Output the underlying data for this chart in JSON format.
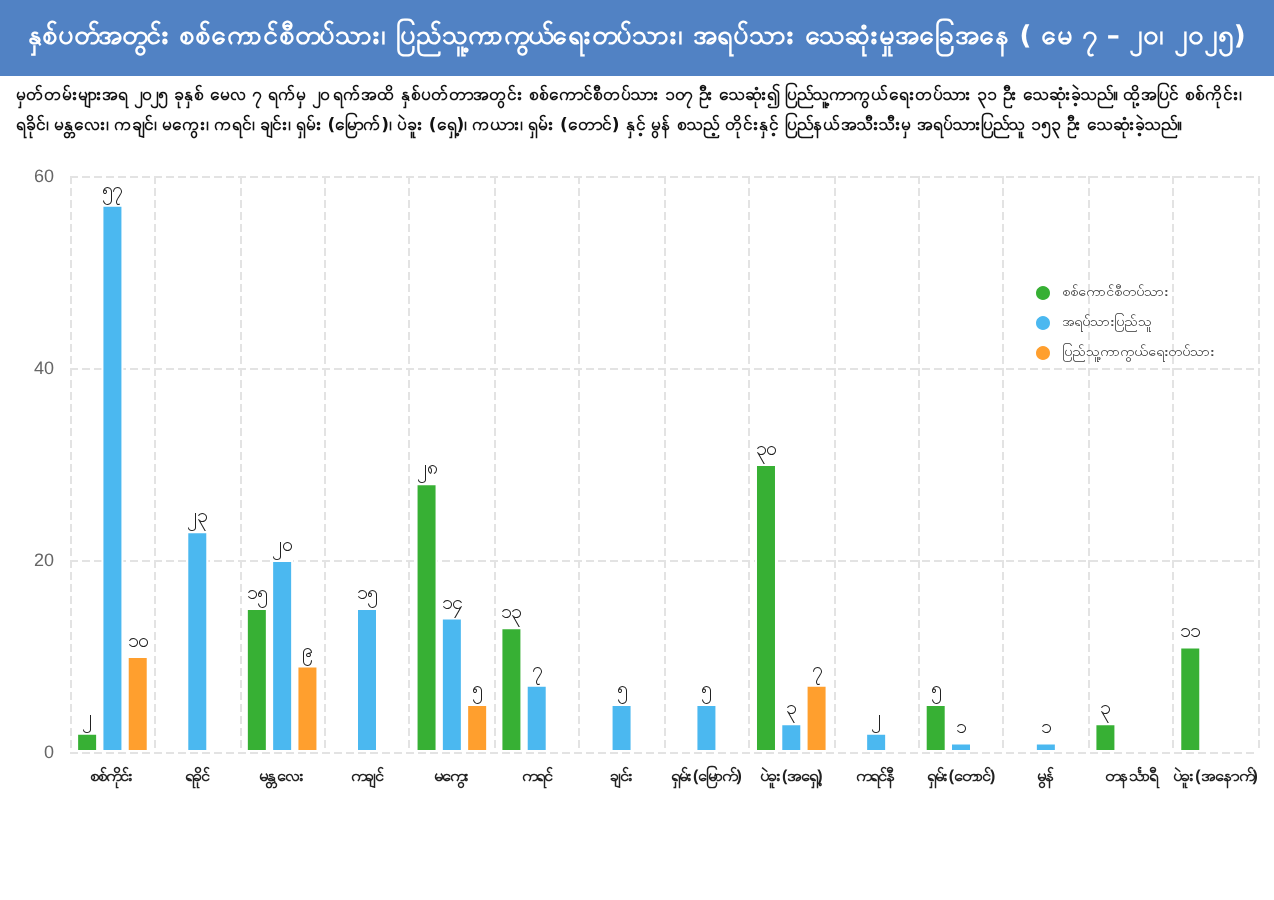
{
  "chart_data": {
    "type": "bar",
    "title": "နှစ်ပတ်အတွင်း စစ်ကောင်စီတပ်သား၊ ပြည်သူ့ကာကွယ်ရေးတပ်သား၊ အရပ်သား သေဆုံးမှုအခြေအနေ ( မေ ၇ – ၂၀၊ ၂၀၂၅)",
    "subtitle": "မှတ်တမ်းများအရ ၂၀၂၅ ခုနှစ် မေလ ၇ ရက်မှ ၂၀ ရက်အထိ နှစ်ပတ်တာအတွင်း စစ်ကောင်စီတပ်သား ၁၀၇ ဦး သေဆုံး၍ ပြည်သူ့ကာကွယ်ရေးတပ်သား ၃၁ ဦး သေဆုံးခဲ့သည်။ ထို့အပြင် စစ်ကိုင်း၊ ရခိုင်၊ မန္တလေး၊ ကချင်၊ မကွေး၊ ကရင်၊ ချင်း၊ ရှမ်း (မြောက်)၊ ပဲခူး (ရှေ့)၊ ကယား၊ ရှမ်း (တောင်) နှင့် မွန် စသည့် တိုင်းနှင့် ပြည်နယ်အသီးသီးမှ အရပ်သားပြည်သူ ၁၅၃ ဦး သေဆုံးခဲ့သည်။",
    "categories": [
      "စစ်ကိုင်း",
      "ရခိုင်",
      "မန္တလေး",
      "ကချင်",
      "မကွေး",
      "ကရင်",
      "ချင်း",
      "ရှမ်း(မြောက်)",
      "ပဲခူး(အရှေ့)",
      "ကရင်နီ",
      "ရှမ်း(တောင်)",
      "မွန်",
      "တနင်္သာရီ",
      "ပဲခူး(အနောက်)"
    ],
    "series": [
      {
        "name": "စစ်ကောင်စီတပ်သား",
        "color": "#37b034",
        "values": [
          2,
          null,
          15,
          null,
          28,
          13,
          null,
          null,
          30,
          null,
          5,
          null,
          3,
          11
        ],
        "value_labels": [
          "၂",
          null,
          "၁၅",
          null,
          "၂၈",
          "၁၃",
          null,
          null,
          "၃၀",
          null,
          "၅",
          null,
          "၃",
          "၁၁"
        ]
      },
      {
        "name": "အရပ်သားပြည်သူ",
        "color": "#4bb8f0",
        "values": [
          57,
          23,
          20,
          15,
          14,
          7,
          5,
          5,
          3,
          2,
          1,
          1,
          null,
          null
        ],
        "value_labels": [
          "၅၇",
          "၂၃",
          "၂၀",
          "၁၅",
          "၁၄",
          "၇",
          "၅",
          "၅",
          "၃",
          "၂",
          "၁",
          "၁",
          null,
          null
        ]
      },
      {
        "name": "ပြည်သူ့ကာကွယ်ရေးတပ်သား",
        "color": "#ff9f2e",
        "values": [
          10,
          null,
          9,
          null,
          5,
          null,
          null,
          null,
          7,
          null,
          null,
          null,
          null,
          null
        ],
        "value_labels": [
          "၁၀",
          null,
          "၉",
          null,
          "၅",
          null,
          null,
          null,
          "၇",
          null,
          null,
          null,
          null,
          null
        ]
      }
    ],
    "ylim": [
      0,
      60
    ],
    "yticks": [
      0,
      20,
      40,
      60
    ],
    "grid": true,
    "legend": "top right"
  }
}
